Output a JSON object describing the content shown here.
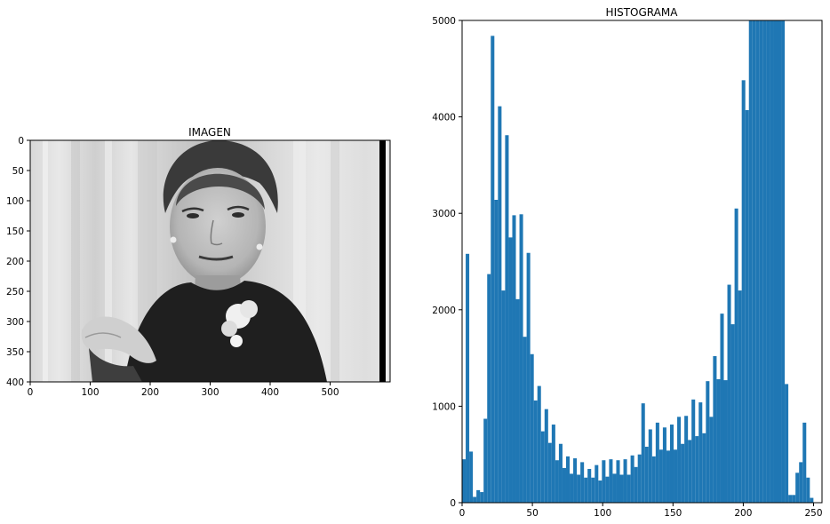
{
  "chart_data": [
    {
      "type": "image",
      "title": "IMAGEN",
      "xlim": [
        0,
        600
      ],
      "ylim": [
        400,
        0
      ],
      "xticks": [
        0,
        100,
        200,
        300,
        400,
        500
      ],
      "yticks": [
        0,
        50,
        100,
        150,
        200,
        250,
        300,
        350,
        400
      ],
      "colormap": "gray",
      "image_content": "black-and-white portrait photograph"
    },
    {
      "type": "bar",
      "title": "HISTOGRAMA",
      "xlim": [
        0,
        256
      ],
      "ylim": [
        0,
        5000
      ],
      "xticks": [
        0,
        50,
        100,
        150,
        200,
        250
      ],
      "yticks": [
        0,
        1000,
        2000,
        3000,
        4000,
        5000
      ],
      "bin_width": 2.55,
      "color": "#1f77b4",
      "values": [
        450,
        2580,
        530,
        60,
        130,
        110,
        870,
        2370,
        4840,
        3140,
        4110,
        2200,
        3810,
        2750,
        2980,
        2110,
        2990,
        1720,
        2590,
        1540,
        1060,
        1210,
        740,
        970,
        620,
        810,
        440,
        610,
        360,
        480,
        300,
        460,
        290,
        420,
        260,
        350,
        260,
        390,
        230,
        440,
        270,
        450,
        300,
        440,
        290,
        450,
        290,
        490,
        370,
        500,
        1030,
        580,
        760,
        480,
        830,
        550,
        780,
        540,
        810,
        550,
        890,
        610,
        900,
        650,
        1070,
        690,
        1040,
        720,
        1260,
        890,
        1520,
        1280,
        1960,
        1270,
        2260,
        1850,
        3050,
        2200,
        4380,
        4070,
        5000,
        5000,
        5000,
        5000,
        5000,
        5000,
        5000,
        5000,
        5000,
        5000,
        1230,
        80,
        80,
        310,
        420,
        830,
        260,
        50
      ]
    }
  ]
}
